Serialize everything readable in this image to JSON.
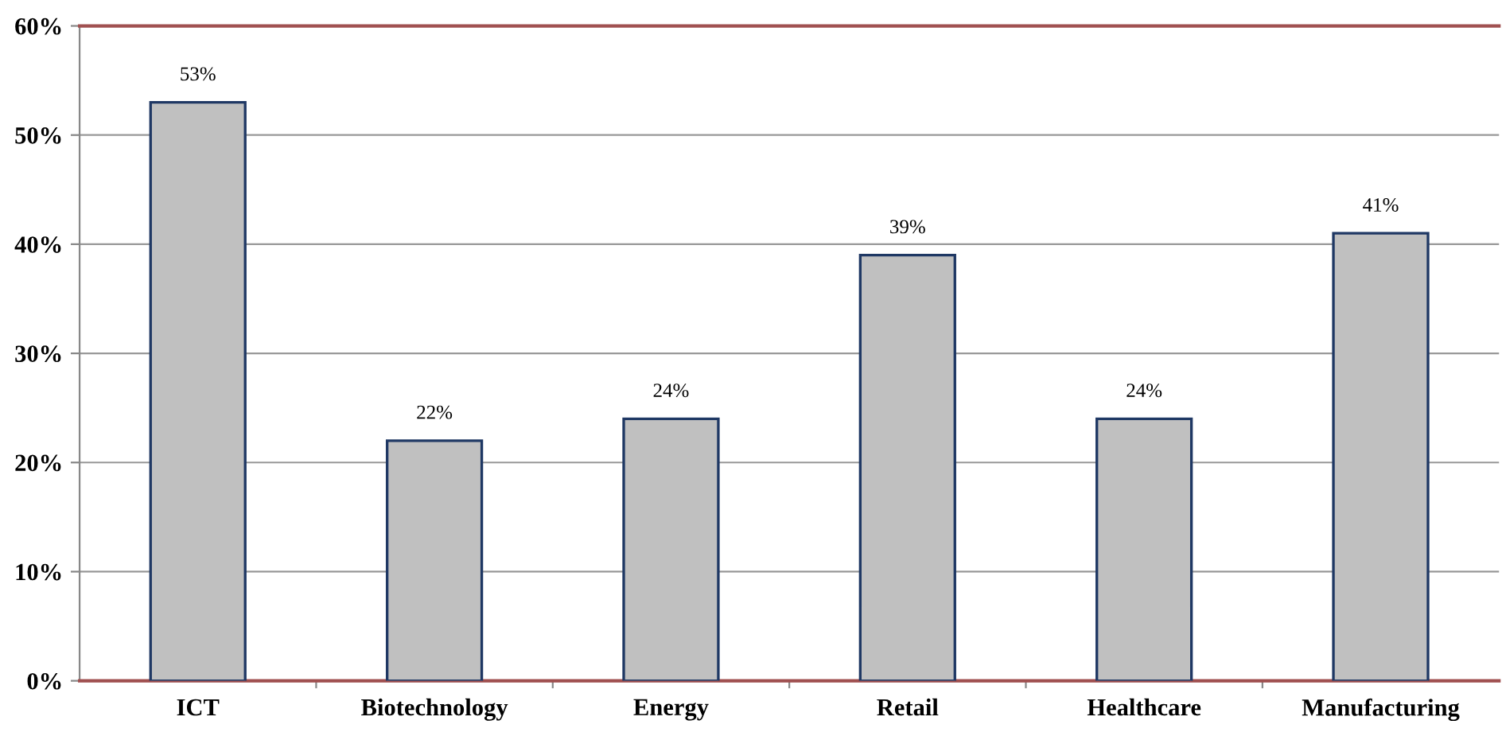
{
  "chart_data": {
    "type": "bar",
    "categories": [
      "ICT",
      "Biotechnology",
      "Energy",
      "Retail",
      "Healthcare",
      "Manufacturing"
    ],
    "values": [
      53,
      22,
      24,
      39,
      24,
      41
    ],
    "value_labels": [
      "53%",
      "22%",
      "24%",
      "39%",
      "24%",
      "41%"
    ],
    "color": "#c0c0c0",
    "ylim": [
      0,
      60
    ],
    "yticks": [
      {
        "value": 0,
        "label": "0%"
      },
      {
        "value": 10,
        "label": "10%"
      },
      {
        "value": 20,
        "label": "20%"
      },
      {
        "value": 30,
        "label": "30%"
      },
      {
        "value": 40,
        "label": "40%"
      },
      {
        "value": 50,
        "label": "50%"
      },
      {
        "value": 60,
        "label": "60%"
      }
    ],
    "grid": "y",
    "legend": false
  }
}
